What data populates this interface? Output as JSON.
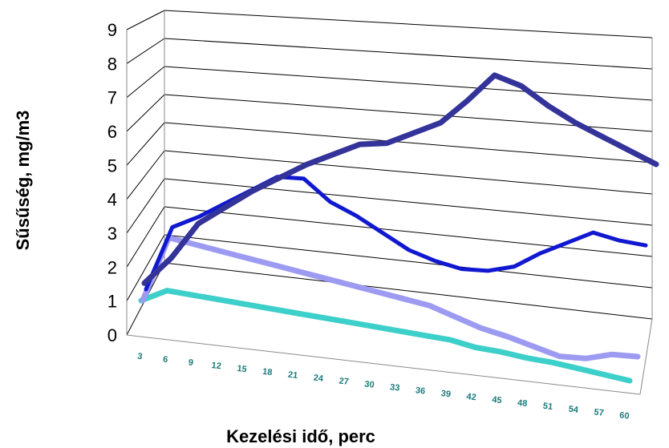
{
  "chart_data": {
    "type": "line",
    "title": "",
    "xlabel": "Kezelési idő, perc",
    "ylabel": "Sűsűség, mg/m3",
    "ylim": [
      0,
      9
    ],
    "yticks": [
      "0",
      "1",
      "2",
      "3",
      "4",
      "5",
      "6",
      "7",
      "8",
      "9"
    ],
    "categories": [
      "3",
      "6",
      "9",
      "12",
      "15",
      "18",
      "21",
      "24",
      "27",
      "30",
      "33",
      "36",
      "39",
      "42",
      "45",
      "48",
      "51",
      "54",
      "57",
      "60"
    ],
    "grid": true,
    "legend": "none",
    "series": [
      {
        "color": "#3dcfc9",
        "values": [
          0.5,
          0.9,
          0.85,
          0.8,
          0.75,
          0.7,
          0.65,
          0.6,
          0.55,
          0.5,
          0.45,
          0.4,
          0.35,
          0.2,
          0.15,
          0.05,
          0.0,
          -0.1,
          -0.2,
          -0.3
        ]
      },
      {
        "color": "#9d9af2",
        "values": [
          0.5,
          2.6,
          2.45,
          2.3,
          2.15,
          2.0,
          1.85,
          1.7,
          1.55,
          1.4,
          1.25,
          1.1,
          0.8,
          0.5,
          0.3,
          0.05,
          -0.2,
          -0.2,
          0.0,
          0.0
        ]
      },
      {
        "color": "#1018d0",
        "values": [
          0.5,
          2.6,
          3.0,
          3.5,
          4.0,
          4.5,
          4.5,
          3.8,
          3.4,
          2.9,
          2.4,
          2.1,
          1.9,
          1.9,
          2.1,
          2.6,
          3.0,
          3.4,
          3.2,
          3.1
        ]
      },
      {
        "color": "#33339a",
        "values": [
          0.5,
          1.4,
          2.6,
          3.2,
          3.8,
          4.3,
          4.8,
          5.2,
          5.6,
          5.7,
          6.1,
          6.5,
          7.3,
          8.2,
          7.9,
          7.3,
          6.8,
          6.4,
          6.0,
          5.6
        ]
      }
    ]
  }
}
